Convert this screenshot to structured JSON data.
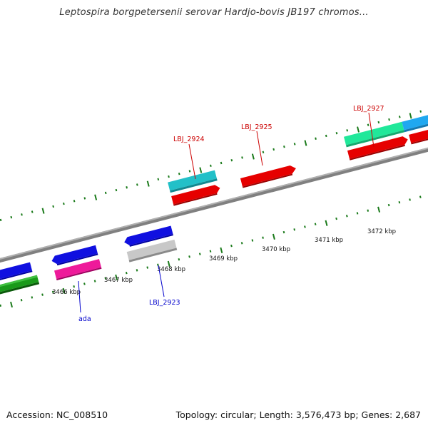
{
  "title": "Leptospira borgpetersenii serovar Hardjo-bovis JB197 chromos...",
  "footer": {
    "accession": "Accession: NC_008510",
    "stats": "Topology: circular; Length: 3,576,473 bp; Genes: 2,687"
  },
  "ruler": {
    "labels": [
      "3466 kbp",
      "3467 kbp",
      "3468 kbp",
      "3469 kbp",
      "3470 kbp",
      "3471 kbp",
      "3472 kbp"
    ]
  },
  "gene_labels": {
    "ada": "ada",
    "lbj2923": "LBJ_2923",
    "lbj2924": "LBJ_2924",
    "lbj2925": "LBJ_2925",
    "lbj2927": "LBJ_2927"
  },
  "colors": {
    "forward_label": "#cc0000",
    "reverse_label": "#0000cc",
    "tick": "#1a7a1a",
    "backbone": "#808080",
    "red_gene": "#e60000",
    "blue_gene": "#1010e0",
    "teal_gene": "#22c0c8",
    "mint_gene": "#20e89a",
    "sky_gene": "#20a8f0",
    "magenta_gene": "#ee1a9a",
    "green_gene": "#1a9a1a",
    "grey_gene": "#c8c8c8"
  }
}
